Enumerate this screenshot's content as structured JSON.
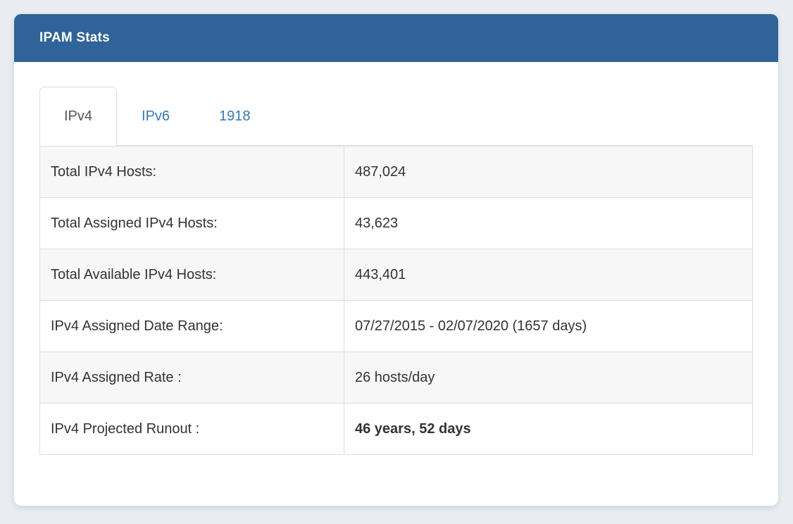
{
  "panel": {
    "title": "IPAM Stats"
  },
  "tabs": [
    {
      "label": "IPv4",
      "active": true
    },
    {
      "label": "IPv6",
      "active": false
    },
    {
      "label": "1918",
      "active": false
    }
  ],
  "stats": {
    "rows": [
      {
        "label": "Total IPv4 Hosts:",
        "value": "487,024",
        "bold": false
      },
      {
        "label": "Total Assigned IPv4 Hosts:",
        "value": "43,623",
        "bold": false
      },
      {
        "label": "Total Available IPv4 Hosts:",
        "value": "443,401",
        "bold": false
      },
      {
        "label": "IPv4 Assigned Date Range:",
        "value": "07/27/2015 - 02/07/2020 (1657 days)",
        "bold": false
      },
      {
        "label": "IPv4 Assigned Rate :",
        "value": "26 hosts/day",
        "bold": false
      },
      {
        "label": "IPv4 Projected Runout :",
        "value": "46 years, 52 days",
        "bold": true
      }
    ]
  },
  "colors": {
    "header_bg": "#2f6399",
    "header_text": "#ffffff",
    "tab_link": "#337ab7",
    "tab_active_text": "#555555",
    "page_bg": "#e9edf1",
    "table_border": "#dddddd",
    "row_stripe": "#f7f7f7",
    "body_text": "#333333"
  }
}
